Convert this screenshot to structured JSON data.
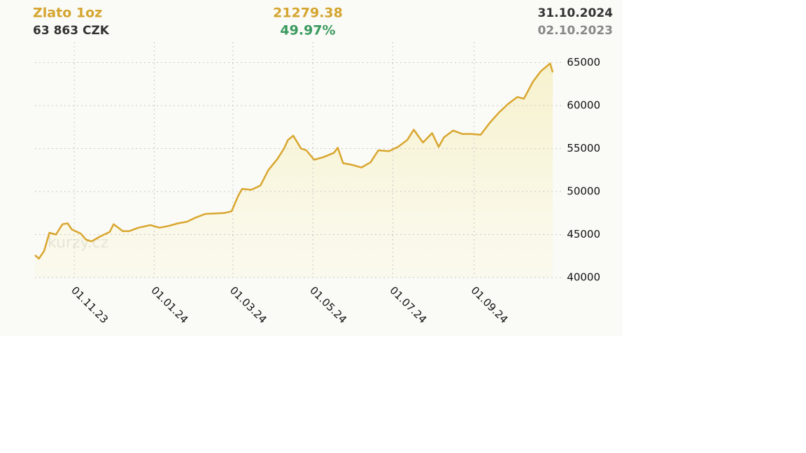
{
  "chart_data": {
    "type": "line",
    "title": "Zlato 1oz",
    "value_czk": "63 863 CZK",
    "price": "21279.38",
    "change": "49.97%",
    "date_end": "31.10.2024",
    "date_start": "02.10.2023",
    "watermark": "kurzy.cz",
    "color": "#d9a62e",
    "grid": true,
    "ylim": [
      40000,
      67400
    ],
    "yticks": [
      40000,
      45000,
      50000,
      55000,
      60000,
      65000
    ],
    "xlim": [
      "2023-10-02",
      "2024-10-31"
    ],
    "xticks": [
      {
        "value": "2023-11-01",
        "label": "01.11.23"
      },
      {
        "value": "2024-01-01",
        "label": "01.01.24"
      },
      {
        "value": "2024-03-01",
        "label": "01.03.24"
      },
      {
        "value": "2024-05-01",
        "label": "01.05.24"
      },
      {
        "value": "2024-07-01",
        "label": "01.07.24"
      },
      {
        "value": "2024-09-01",
        "label": "01.09.24"
      }
    ],
    "x": [
      "2023-10-02",
      "2023-10-05",
      "2023-10-09",
      "2023-10-13",
      "2023-10-18",
      "2023-10-23",
      "2023-10-27",
      "2023-10-30",
      "2023-11-06",
      "2023-11-10",
      "2023-11-14",
      "2023-11-21",
      "2023-11-28",
      "2023-12-01",
      "2023-12-08",
      "2023-12-13",
      "2023-12-20",
      "2023-12-29",
      "2024-01-05",
      "2024-01-12",
      "2024-01-19",
      "2024-01-26",
      "2024-02-02",
      "2024-02-09",
      "2024-02-16",
      "2024-02-23",
      "2024-02-29",
      "2024-03-05",
      "2024-03-08",
      "2024-03-15",
      "2024-03-22",
      "2024-03-28",
      "2024-04-04",
      "2024-04-09",
      "2024-04-12",
      "2024-04-16",
      "2024-04-22",
      "2024-04-26",
      "2024-05-02",
      "2024-05-09",
      "2024-05-17",
      "2024-05-20",
      "2024-05-24",
      "2024-05-31",
      "2024-06-07",
      "2024-06-14",
      "2024-06-20",
      "2024-06-28",
      "2024-07-05",
      "2024-07-12",
      "2024-07-17",
      "2024-07-24",
      "2024-07-31",
      "2024-08-05",
      "2024-08-09",
      "2024-08-16",
      "2024-08-23",
      "2024-08-30",
      "2024-09-06",
      "2024-09-13",
      "2024-09-20",
      "2024-09-27",
      "2024-10-04",
      "2024-10-09",
      "2024-10-16",
      "2024-10-22",
      "2024-10-29",
      "2024-10-31"
    ],
    "series": [
      {
        "name": "Zlato 1oz",
        "color": "#d9a62e",
        "values": [
          42600,
          42200,
          43100,
          45200,
          45000,
          46200,
          46300,
          45600,
          45100,
          44400,
          44200,
          44800,
          45300,
          46200,
          45400,
          45400,
          45800,
          46100,
          45800,
          46000,
          46300,
          46500,
          47000,
          47400,
          47450,
          47500,
          47700,
          49500,
          50300,
          50200,
          50700,
          52500,
          53800,
          55000,
          56000,
          56500,
          55000,
          54800,
          53700,
          54000,
          54500,
          55100,
          53300,
          53100,
          52800,
          53400,
          54800,
          54700,
          55200,
          56000,
          57200,
          55700,
          56800,
          55200,
          56300,
          57100,
          56700,
          56700,
          56600,
          58000,
          59200,
          60200,
          61000,
          60800,
          62800,
          64000,
          64900,
          63863
        ]
      }
    ]
  }
}
